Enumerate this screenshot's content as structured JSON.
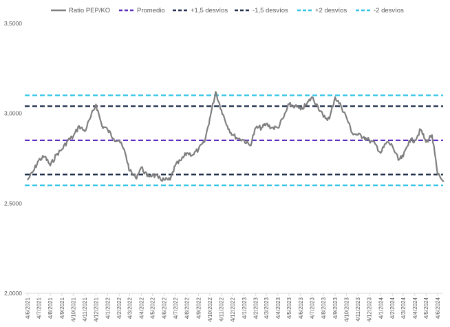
{
  "chart_data": {
    "type": "line",
    "title": "",
    "xlabel": "",
    "ylabel": "",
    "ylim": [
      2.0,
      3.5
    ],
    "yticks": [
      "2,0000",
      "2,5000",
      "3,0000",
      "3,5000"
    ],
    "grid": false,
    "legend_position": "top",
    "x_tick_labels": [
      "4/6/2021",
      "4/7/2021",
      "4/8/2021",
      "4/9/2021",
      "4/10/2021",
      "4/11/2021",
      "4/12/2021",
      "4/1/2022",
      "4/2/2022",
      "4/3/2022",
      "4/4/2022",
      "4/5/2022",
      "4/6/2022",
      "4/7/2022",
      "4/8/2022",
      "4/9/2022",
      "4/10/2022",
      "4/11/2022",
      "4/12/2022",
      "4/1/2023",
      "4/2/2023",
      "4/3/2023",
      "4/4/2023",
      "4/5/2023",
      "4/6/2023",
      "4/7/2023",
      "4/8/2023",
      "4/9/2023",
      "4/10/2023",
      "4/11/2023",
      "4/12/2023",
      "4/1/2024",
      "4/2/2024",
      "4/3/2024",
      "4/4/2024",
      "4/5/2024",
      "4/6/2024"
    ],
    "series": [
      {
        "name": "Ratio PEP/KO",
        "color": "#7f7f7f",
        "style": "solid",
        "x": [
          "4/6/2021",
          "20/6/2021",
          "4/7/2021",
          "20/7/2021",
          "4/8/2021",
          "20/8/2021",
          "4/9/2021",
          "20/9/2021",
          "4/10/2021",
          "20/10/2021",
          "4/11/2021",
          "20/11/2021",
          "4/12/2021",
          "20/12/2021",
          "4/1/2022",
          "20/1/2022",
          "4/2/2022",
          "20/2/2022",
          "4/3/2022",
          "20/3/2022",
          "4/4/2022",
          "20/4/2022",
          "4/5/2022",
          "20/5/2022",
          "4/6/2022",
          "20/6/2022",
          "4/7/2022",
          "20/7/2022",
          "4/8/2022",
          "20/8/2022",
          "4/9/2022",
          "20/9/2022",
          "4/10/2022",
          "20/10/2022",
          "4/11/2022",
          "20/11/2022",
          "4/12/2022",
          "20/12/2022",
          "4/1/2023",
          "20/1/2023",
          "4/2/2023",
          "20/2/2023",
          "4/3/2023",
          "20/3/2023",
          "4/4/2023",
          "20/4/2023",
          "4/5/2023",
          "20/5/2023",
          "4/6/2023",
          "20/6/2023",
          "4/7/2023",
          "20/7/2023",
          "4/8/2023",
          "20/8/2023",
          "4/9/2023",
          "20/9/2023",
          "4/10/2023",
          "20/10/2023",
          "4/11/2023",
          "20/11/2023",
          "4/12/2023",
          "20/12/2023",
          "4/1/2024",
          "20/1/2024",
          "4/2/2024",
          "20/2/2024",
          "4/3/2024",
          "20/3/2024",
          "4/4/2024",
          "20/4/2024",
          "4/5/2024",
          "20/5/2024",
          "4/6/2024",
          "20/6/2024"
        ],
        "values": [
          2.63,
          2.68,
          2.74,
          2.76,
          2.71,
          2.77,
          2.8,
          2.85,
          2.87,
          2.93,
          2.9,
          2.98,
          3.05,
          2.93,
          2.91,
          2.86,
          2.85,
          2.78,
          2.68,
          2.64,
          2.7,
          2.65,
          2.66,
          2.64,
          2.63,
          2.63,
          2.71,
          2.74,
          2.78,
          2.77,
          2.8,
          2.84,
          2.97,
          3.12,
          3.02,
          2.93,
          2.88,
          2.86,
          2.85,
          2.82,
          2.92,
          2.92,
          2.94,
          2.92,
          2.92,
          2.98,
          3.05,
          3.04,
          3.02,
          3.05,
          3.09,
          3.04,
          2.98,
          2.97,
          3.09,
          3.04,
          2.98,
          2.89,
          2.88,
          2.87,
          2.85,
          2.83,
          2.78,
          2.84,
          2.82,
          2.74,
          2.76,
          2.85,
          2.85,
          2.91,
          2.84,
          2.88,
          2.66,
          2.62
        ]
      },
      {
        "name": "Promedio",
        "color": "#5b2bbf",
        "style": "dashed",
        "value": 2.85
      },
      {
        "name": "+1,5 desvíos",
        "color": "#1f2d4b",
        "style": "dashed",
        "value": 3.04
      },
      {
        "name": "-1,5 desvíos",
        "color": "#1f2d4b",
        "style": "dashed",
        "value": 2.66
      },
      {
        "name": "+2 desvíos",
        "color": "#2ec4e6",
        "style": "dashed",
        "value": 3.1
      },
      {
        "name": "-2 desvíos",
        "color": "#2ec4e6",
        "style": "dashed",
        "value": 2.6
      }
    ]
  }
}
